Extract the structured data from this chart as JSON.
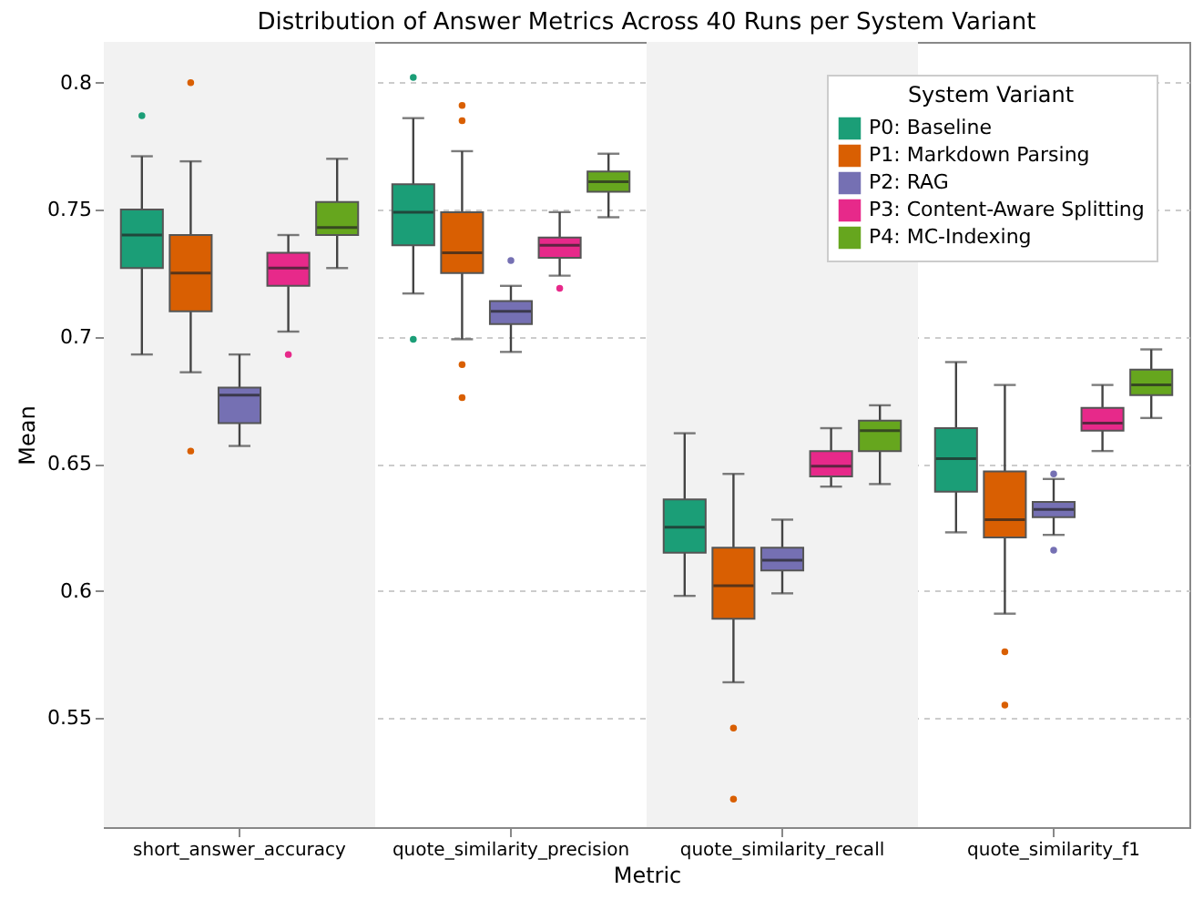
{
  "chart_data": {
    "type": "box",
    "title": "Distribution of Answer Metrics Across 40 Runs per System Variant",
    "xlabel": "Metric",
    "ylabel": "Mean",
    "legend_title": "System Variant",
    "categories": [
      "short_answer_accuracy",
      "quote_similarity_precision",
      "quote_similarity_recall",
      "quote_similarity_f1"
    ],
    "series": [
      {
        "name": "P0: Baseline",
        "color": "#1b9e77",
        "boxes": [
          {
            "low": 0.693,
            "q1": 0.727,
            "median": 0.74,
            "q3": 0.75,
            "high": 0.771,
            "outliers": [
              0.787
            ]
          },
          {
            "low": 0.717,
            "q1": 0.736,
            "median": 0.749,
            "q3": 0.76,
            "high": 0.786,
            "outliers": [
              0.802,
              0.699
            ]
          },
          {
            "low": 0.598,
            "q1": 0.615,
            "median": 0.625,
            "q3": 0.636,
            "high": 0.662
          },
          {
            "low": 0.623,
            "q1": 0.639,
            "median": 0.652,
            "q3": 0.664,
            "high": 0.69
          }
        ]
      },
      {
        "name": "P1: Markdown Parsing",
        "color": "#d95f02",
        "boxes": [
          {
            "low": 0.686,
            "q1": 0.71,
            "median": 0.725,
            "q3": 0.74,
            "high": 0.769,
            "outliers": [
              0.8,
              0.655
            ]
          },
          {
            "low": 0.699,
            "q1": 0.725,
            "median": 0.733,
            "q3": 0.749,
            "high": 0.773,
            "outliers": [
              0.791,
              0.785,
              0.689,
              0.676
            ]
          },
          {
            "low": 0.564,
            "q1": 0.589,
            "median": 0.602,
            "q3": 0.617,
            "high": 0.646,
            "outliers": [
              0.546,
              0.518
            ]
          },
          {
            "low": 0.591,
            "q1": 0.621,
            "median": 0.628,
            "q3": 0.647,
            "high": 0.681,
            "outliers": [
              0.576,
              0.555
            ]
          }
        ]
      },
      {
        "name": "P2: RAG",
        "color": "#7570b3",
        "boxes": [
          {
            "low": 0.657,
            "q1": 0.666,
            "median": 0.677,
            "q3": 0.68,
            "high": 0.693
          },
          {
            "low": 0.694,
            "q1": 0.705,
            "median": 0.71,
            "q3": 0.714,
            "high": 0.72,
            "outliers": [
              0.73
            ]
          },
          {
            "low": 0.599,
            "q1": 0.608,
            "median": 0.612,
            "q3": 0.617,
            "high": 0.628
          },
          {
            "low": 0.622,
            "q1": 0.629,
            "median": 0.632,
            "q3": 0.635,
            "high": 0.644,
            "outliers": [
              0.646,
              0.616
            ]
          }
        ]
      },
      {
        "name": "P3: Content-Aware Splitting",
        "color": "#e7298a",
        "boxes": [
          {
            "low": 0.702,
            "q1": 0.72,
            "median": 0.727,
            "q3": 0.733,
            "high": 0.74,
            "outliers": [
              0.693
            ]
          },
          {
            "low": 0.724,
            "q1": 0.731,
            "median": 0.736,
            "q3": 0.739,
            "high": 0.749,
            "outliers": [
              0.719
            ]
          },
          {
            "low": 0.641,
            "q1": 0.645,
            "median": 0.649,
            "q3": 0.655,
            "high": 0.664
          },
          {
            "low": 0.655,
            "q1": 0.663,
            "median": 0.666,
            "q3": 0.672,
            "high": 0.681
          }
        ]
      },
      {
        "name": "P4: MC-Indexing",
        "color": "#66a61e",
        "boxes": [
          {
            "low": 0.727,
            "q1": 0.74,
            "median": 0.743,
            "q3": 0.753,
            "high": 0.77
          },
          {
            "low": 0.747,
            "q1": 0.757,
            "median": 0.761,
            "q3": 0.765,
            "high": 0.772
          },
          {
            "low": 0.642,
            "q1": 0.655,
            "median": 0.663,
            "q3": 0.667,
            "high": 0.673
          },
          {
            "low": 0.668,
            "q1": 0.677,
            "median": 0.681,
            "q3": 0.687,
            "high": 0.695
          }
        ]
      }
    ],
    "bands": [
      {
        "axis": "x",
        "from": "short_answer_accuracy",
        "to": "short_answer_accuracy",
        "color": "#f2f2f2"
      },
      {
        "axis": "x",
        "from": "quote_similarity_recall",
        "to": "quote_similarity_recall",
        "color": "#f2f2f2"
      }
    ],
    "ylim": [
      0.507,
      0.816
    ],
    "yticks": [
      0.55,
      0.6,
      0.65,
      0.7,
      0.75,
      0.8
    ],
    "grid": "y",
    "legend": "top right"
  }
}
